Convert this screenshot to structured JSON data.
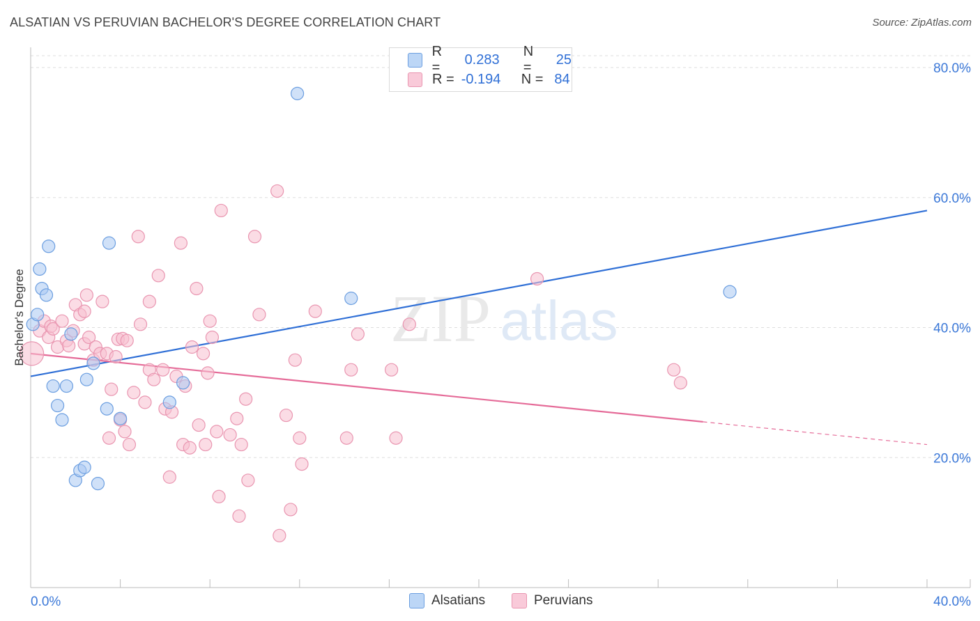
{
  "title": "ALSATIAN VS PERUVIAN BACHELOR'S DEGREE CORRELATION CHART",
  "source": "Source: ZipAtlas.com",
  "watermark": {
    "zip": "ZIP",
    "atlas": "atlas"
  },
  "legend_top": {
    "rows": [
      {
        "r_label": "R =",
        "r_value": "0.283",
        "n_label": "N =",
        "n_value": "25"
      },
      {
        "r_label": "R =",
        "r_value": "-0.194",
        "n_label": "N =",
        "n_value": "84"
      }
    ]
  },
  "legend_bottom": {
    "alsatians": "Alsatians",
    "peruvians": "Peruvians"
  },
  "colors": {
    "alsatian_fill": "#a9c8f2",
    "alsatian_stroke": "#6b9ee0",
    "alsatian_line": "#2f6fd6",
    "peruvian_fill": "#f7bfd0",
    "peruvian_stroke": "#e995b0",
    "peruvian_line": "#e56b98",
    "axis_text": "#3b78d8",
    "grid": "#dddddd"
  },
  "chart_data": {
    "type": "scatter",
    "title": "ALSATIAN VS PERUVIAN BACHELOR'S DEGREE CORRELATION CHART",
    "xlabel": "",
    "ylabel": "Bachelor's Degree",
    "xlim": [
      0,
      40
    ],
    "ylim": [
      0,
      80
    ],
    "x_tick_labels": [
      {
        "value": 0,
        "label": "0.0%"
      },
      {
        "value": 40,
        "label": "40.0%"
      }
    ],
    "y_tick_labels": [
      {
        "value": 20,
        "label": "20.0%"
      },
      {
        "value": 40,
        "label": "40.0%"
      },
      {
        "value": 60,
        "label": "60.0%"
      },
      {
        "value": 80,
        "label": "80.0%"
      }
    ],
    "series": [
      {
        "name": "Alsatians",
        "r": 0.283,
        "n": 25,
        "trend": {
          "x0": 0,
          "y0": 32.5,
          "x1": 40,
          "y1": 58
        },
        "points": [
          [
            0.1,
            40.5
          ],
          [
            0.3,
            42
          ],
          [
            0.4,
            49
          ],
          [
            0.5,
            46
          ],
          [
            0.7,
            45
          ],
          [
            0.8,
            52.5
          ],
          [
            1.0,
            31
          ],
          [
            1.2,
            28
          ],
          [
            1.4,
            25.8
          ],
          [
            1.6,
            31
          ],
          [
            1.8,
            39
          ],
          [
            2.0,
            16.5
          ],
          [
            2.2,
            18
          ],
          [
            2.4,
            18.5
          ],
          [
            2.5,
            32
          ],
          [
            2.8,
            34.5
          ],
          [
            3.0,
            16
          ],
          [
            3.4,
            27.5
          ],
          [
            3.5,
            53
          ],
          [
            4.0,
            26
          ],
          [
            6.2,
            28.5
          ],
          [
            6.8,
            31.5
          ],
          [
            11.9,
            76
          ],
          [
            14.3,
            44.5
          ],
          [
            31.2,
            45.5
          ]
        ]
      },
      {
        "name": "Peruvians",
        "r": -0.194,
        "n": 84,
        "trend": {
          "x0": 0,
          "y0": 36,
          "x1": 30,
          "y1": 25.5
        },
        "trend_dashed": {
          "x0": 30,
          "y0": 25.5,
          "x1": 40,
          "y1": 22
        },
        "points": [
          [
            0.05,
            36
          ],
          [
            0.4,
            39.5
          ],
          [
            0.6,
            41
          ],
          [
            0.8,
            38.5
          ],
          [
            0.9,
            40.2
          ],
          [
            1.0,
            39.8
          ],
          [
            1.2,
            37
          ],
          [
            1.4,
            41
          ],
          [
            1.6,
            38
          ],
          [
            1.7,
            37.2
          ],
          [
            1.9,
            39.5
          ],
          [
            2.0,
            43.5
          ],
          [
            2.2,
            42
          ],
          [
            2.4,
            37.5
          ],
          [
            2.4,
            42.5
          ],
          [
            2.5,
            45
          ],
          [
            2.6,
            38.5
          ],
          [
            2.8,
            35
          ],
          [
            2.9,
            37
          ],
          [
            3.1,
            36
          ],
          [
            3.2,
            44
          ],
          [
            3.4,
            36
          ],
          [
            3.5,
            23
          ],
          [
            3.6,
            30.5
          ],
          [
            3.8,
            35.5
          ],
          [
            3.9,
            38.2
          ],
          [
            4.0,
            25.8
          ],
          [
            4.1,
            38.3
          ],
          [
            4.2,
            24
          ],
          [
            4.4,
            22
          ],
          [
            4.6,
            30
          ],
          [
            4.8,
            54
          ],
          [
            4.9,
            40.5
          ],
          [
            5.1,
            28.5
          ],
          [
            5.3,
            33.5
          ],
          [
            5.3,
            44
          ],
          [
            5.5,
            32
          ],
          [
            5.7,
            48
          ],
          [
            5.9,
            33.5
          ],
          [
            6.0,
            27.5
          ],
          [
            6.2,
            17
          ],
          [
            6.3,
            27
          ],
          [
            6.5,
            32.5
          ],
          [
            6.7,
            53
          ],
          [
            6.8,
            22
          ],
          [
            6.9,
            31
          ],
          [
            7.1,
            21.5
          ],
          [
            7.2,
            37
          ],
          [
            7.4,
            46
          ],
          [
            7.5,
            25
          ],
          [
            7.7,
            36
          ],
          [
            7.8,
            22
          ],
          [
            7.9,
            33
          ],
          [
            8.0,
            41
          ],
          [
            8.1,
            38.5
          ],
          [
            8.3,
            24
          ],
          [
            8.4,
            14
          ],
          [
            8.5,
            58
          ],
          [
            8.9,
            23.5
          ],
          [
            9.2,
            26
          ],
          [
            9.3,
            11
          ],
          [
            9.4,
            22
          ],
          [
            9.6,
            29
          ],
          [
            9.7,
            16.5
          ],
          [
            10.0,
            54
          ],
          [
            10.2,
            42
          ],
          [
            11.0,
            61
          ],
          [
            11.1,
            8
          ],
          [
            11.4,
            26.5
          ],
          [
            11.6,
            12
          ],
          [
            11.8,
            35
          ],
          [
            12.0,
            23
          ],
          [
            12.1,
            19
          ],
          [
            14.1,
            23
          ],
          [
            14.3,
            33.5
          ],
          [
            14.6,
            39
          ],
          [
            16.1,
            33.5
          ],
          [
            16.3,
            23
          ],
          [
            16.9,
            40.5
          ],
          [
            22.6,
            47.5
          ],
          [
            28.7,
            33.5
          ],
          [
            29.0,
            31.5
          ],
          [
            12.7,
            42.5
          ],
          [
            4.3,
            38
          ]
        ]
      }
    ]
  }
}
